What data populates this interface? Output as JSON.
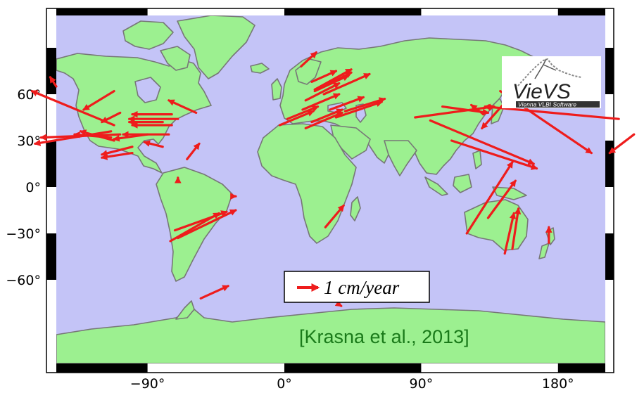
{
  "map": {
    "ocean_color": "#c4c4f7",
    "land_color": "#9cf090",
    "coast_color": "#777777",
    "arrow_color": "#ee1c1c",
    "lon_ticks": [
      {
        "value": -90,
        "label": "−90°"
      },
      {
        "value": 0,
        "label": "0°"
      },
      {
        "value": 90,
        "label": "90°"
      },
      {
        "value": 180,
        "label": "180°"
      }
    ],
    "lat_ticks": [
      {
        "value": 60,
        "label": "60°"
      },
      {
        "value": 30,
        "label": "30°"
      },
      {
        "value": 0,
        "label": "0°"
      },
      {
        "value": -30,
        "label": "−30°"
      },
      {
        "value": -60,
        "label": "−60°"
      }
    ],
    "legend": {
      "label": "1 cm/year"
    },
    "citation": "[Krasna et al., 2013]",
    "logo": {
      "name": "VieVS",
      "subtitle": "Vienna VLBI Software"
    },
    "velocities": [
      {
        "lon": 11,
        "lat": 78,
        "dlon": 10,
        "dlat": 9
      },
      {
        "lon": 18,
        "lat": 68,
        "dlon": 16,
        "dlat": 7
      },
      {
        "lon": 20,
        "lat": 62,
        "dlon": 22,
        "dlat": 10
      },
      {
        "lon": 26,
        "lat": 60,
        "dlon": 30,
        "dlat": 13
      },
      {
        "lon": 14,
        "lat": 56,
        "dlon": 22,
        "dlat": 11
      },
      {
        "lon": 12,
        "lat": 50,
        "dlon": 24,
        "dlat": 10
      },
      {
        "lon": 2,
        "lat": 44,
        "dlon": 20,
        "dlat": 8
      },
      {
        "lon": -3,
        "lat": 40,
        "dlon": 22,
        "dlat": 9
      },
      {
        "lon": 18,
        "lat": 42,
        "dlon": 20,
        "dlat": 8
      },
      {
        "lon": 14,
        "lat": 38,
        "dlon": 24,
        "dlat": 10
      },
      {
        "lon": 30,
        "lat": 50,
        "dlon": 22,
        "dlat": 8
      },
      {
        "lon": 34,
        "lat": 45,
        "dlon": 30,
        "dlat": 10
      },
      {
        "lon": 40,
        "lat": 49,
        "dlon": 26,
        "dlat": 8
      },
      {
        "lon": 20,
        "lat": 63,
        "dlon": 24,
        "dlat": 13
      },
      {
        "lon": 28,
        "lat": 66,
        "dlon": 16,
        "dlat": 8
      },
      {
        "lon": 104,
        "lat": 52,
        "dlon": 30,
        "dlat": -4
      },
      {
        "lon": 86,
        "lat": 45,
        "dlon": 52,
        "dlat": 7
      },
      {
        "lon": 96,
        "lat": 43,
        "dlon": 68,
        "dlat": -28
      },
      {
        "lon": 110,
        "lat": 30,
        "dlon": 56,
        "dlat": -18
      },
      {
        "lon": 131,
        "lat": 47,
        "dlon": -8,
        "dlat": 6
      },
      {
        "lon": 150,
        "lat": 60,
        "dlon": -20,
        "dlat": -22
      },
      {
        "lon": 142,
        "lat": 62,
        "dlon": 60,
        "dlat": -40
      },
      {
        "lon": 220,
        "lat": 44,
        "dlon": -88,
        "dlat": 8
      },
      {
        "lon": 230,
        "lat": 34,
        "dlon": -16,
        "dlat": -12
      },
      {
        "lon": 120,
        "lat": -30,
        "dlon": 30,
        "dlat": 46
      },
      {
        "lon": 134,
        "lat": -20,
        "dlon": 18,
        "dlat": 24
      },
      {
        "lon": 145,
        "lat": -43,
        "dlon": 6,
        "dlat": 26
      },
      {
        "lon": 150,
        "lat": -40,
        "dlon": 4,
        "dlat": 26
      },
      {
        "lon": 174,
        "lat": -36,
        "dlon": 0,
        "dlat": 10
      },
      {
        "lon": -150,
        "lat": 65,
        "dlon": -4,
        "dlat": 6
      },
      {
        "lon": -112,
        "lat": 40,
        "dlon": -54,
        "dlat": 22
      },
      {
        "lon": -114,
        "lat": 36,
        "dlon": -50,
        "dlat": -8
      },
      {
        "lon": -108,
        "lat": 34,
        "dlon": -52,
        "dlat": -2
      },
      {
        "lon": -112,
        "lat": 30,
        "dlon": -22,
        "dlat": 6
      },
      {
        "lon": -114,
        "lat": 32,
        "dlon": -24,
        "dlat": 2
      },
      {
        "lon": -100,
        "lat": 26,
        "dlon": -20,
        "dlat": -5
      },
      {
        "lon": -100,
        "lat": 22,
        "dlon": -20,
        "dlat": -3
      },
      {
        "lon": -112,
        "lat": 62,
        "dlon": -20,
        "dlat": -12
      },
      {
        "lon": -108,
        "lat": 48,
        "dlon": -12,
        "dlat": -6
      },
      {
        "lon": -80,
        "lat": 42,
        "dlon": -22,
        "dlat": 0
      },
      {
        "lon": -74,
        "lat": 47,
        "dlon": -26,
        "dlat": 0
      },
      {
        "lon": -70,
        "lat": 44,
        "dlon": -32,
        "dlat": 0
      },
      {
        "lon": -74,
        "lat": 40,
        "dlon": -26,
        "dlat": 0
      },
      {
        "lon": -76,
        "lat": 34,
        "dlon": -30,
        "dlat": 0
      },
      {
        "lon": -90,
        "lat": 34,
        "dlon": -22,
        "dlat": -3
      },
      {
        "lon": -58,
        "lat": 48,
        "dlon": -18,
        "dlat": 8
      },
      {
        "lon": -80,
        "lat": 26,
        "dlon": -12,
        "dlat": 3
      },
      {
        "lon": -64,
        "lat": 18,
        "dlon": 8,
        "dlat": 10
      },
      {
        "lon": -70,
        "lat": 4,
        "dlon": 0,
        "dlat": 2
      },
      {
        "lon": -34,
        "lat": -6,
        "dlon": 2,
        "dlat": 0
      },
      {
        "lon": -75,
        "lat": -35,
        "dlon": 32,
        "dlat": 18
      },
      {
        "lon": -70,
        "lat": -33,
        "dlon": 38,
        "dlat": 18
      },
      {
        "lon": -72,
        "lat": -28,
        "dlon": 34,
        "dlat": 12
      },
      {
        "lon": -55,
        "lat": -72,
        "dlon": 18,
        "dlat": 8
      },
      {
        "lon": 27,
        "lat": -26,
        "dlon": 12,
        "dlat": 14
      },
      {
        "lon": 36,
        "lat": -76,
        "dlon": 0,
        "dlat": 0
      }
    ]
  }
}
